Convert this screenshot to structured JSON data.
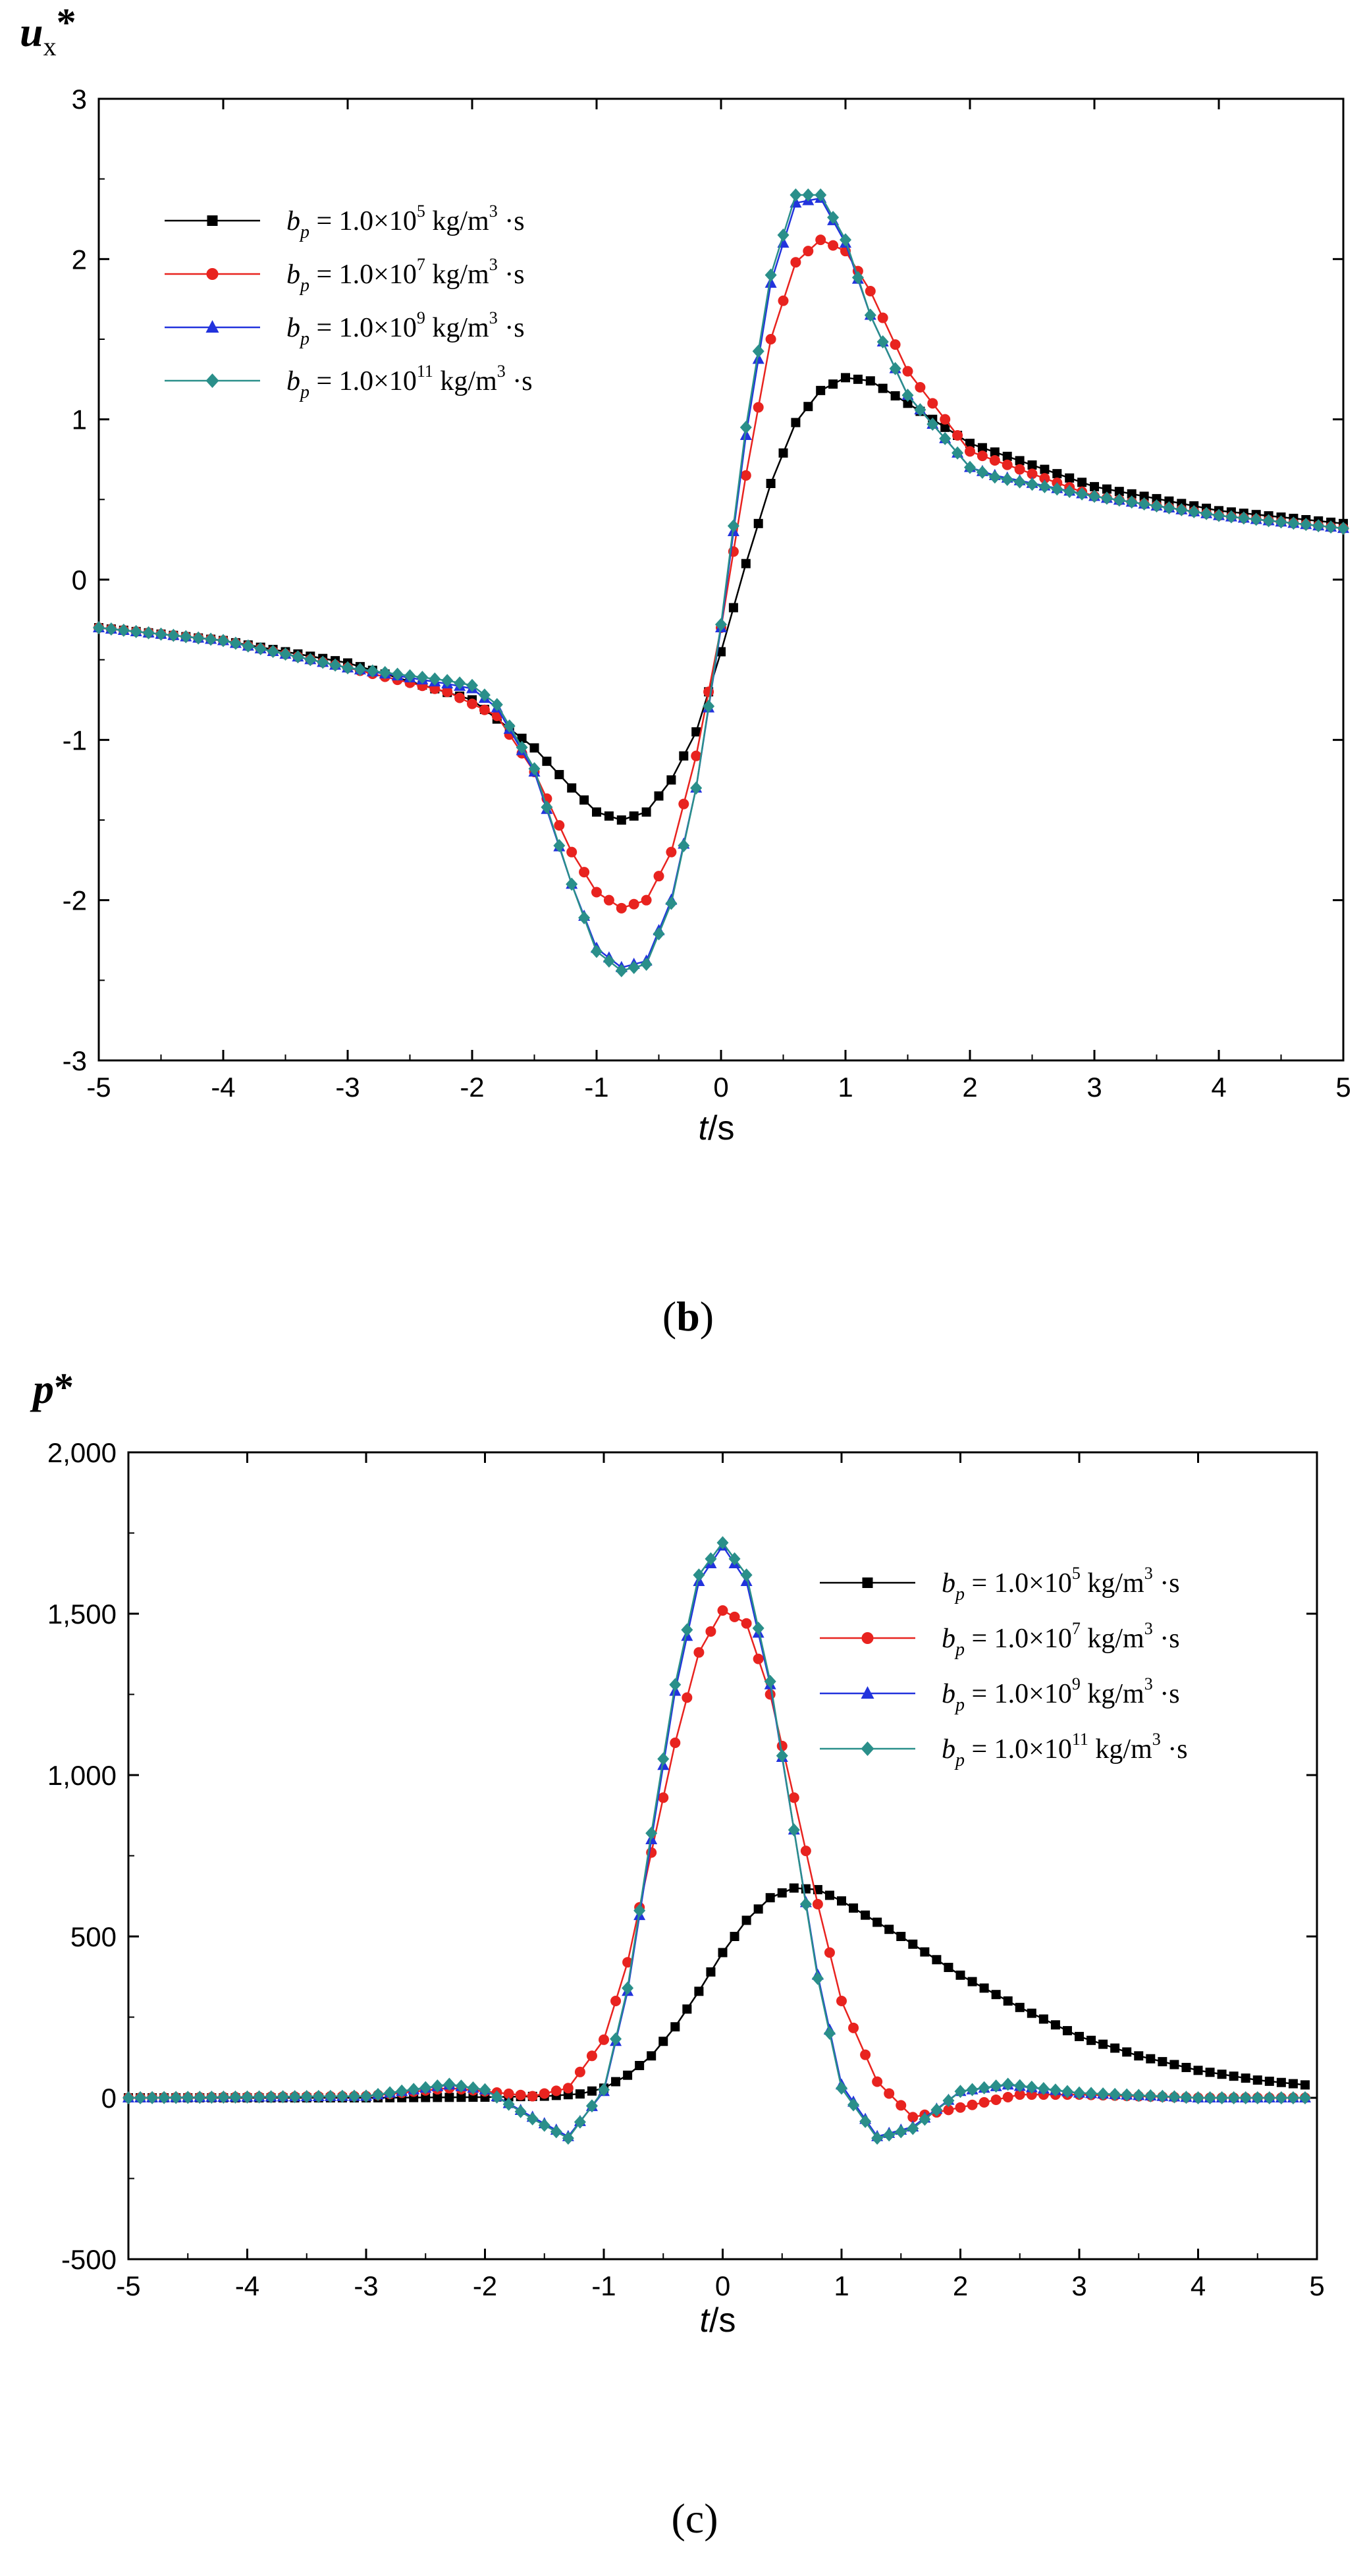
{
  "chart_data": [
    {
      "type": "line",
      "panel_label": "(b)",
      "ylabel_main": "u",
      "ylabel_sub": "x",
      "ylabel_star": "*",
      "xlabel": "t/s",
      "xlim": [
        -5,
        5
      ],
      "ylim": [
        -3,
        3
      ],
      "x_ticks": [
        -5,
        -4,
        -3,
        -2,
        -1,
        0,
        1,
        2,
        3,
        4,
        5
      ],
      "x_tick_labels": [
        "-5",
        "-4",
        "-3",
        "-2",
        "-1",
        "0",
        "1",
        "2",
        "3",
        "4",
        "5"
      ],
      "y_ticks": [
        -3,
        -2,
        -1,
        0,
        1,
        2,
        3
      ],
      "y_tick_labels": [
        "-3",
        "-2",
        "-1",
        "0",
        "1",
        "2",
        "3"
      ],
      "legend_position": "top-left",
      "series": [
        {
          "name": "b_p = 1.0×10^5 kg/m^3·s",
          "exp": "5",
          "color": "#000000",
          "marker": "square",
          "x": [
            -5,
            -4,
            -3,
            -2,
            -1.5,
            -1.2,
            -1.0,
            -0.8,
            -0.6,
            -0.4,
            -0.2,
            0,
            0.2,
            0.4,
            0.6,
            0.8,
            1.0,
            1.2,
            1.5,
            2,
            3,
            4,
            5
          ],
          "y": [
            -0.3,
            -0.38,
            -0.52,
            -0.75,
            -1.05,
            -1.3,
            -1.45,
            -1.5,
            -1.45,
            -1.25,
            -0.95,
            -0.45,
            0.1,
            0.6,
            0.98,
            1.18,
            1.26,
            1.24,
            1.1,
            0.85,
            0.58,
            0.43,
            0.35
          ]
        },
        {
          "name": "b_p = 1.0×10^7 kg/m^3·s",
          "exp": "7",
          "color": "#e8231f",
          "marker": "circle",
          "x": [
            -5,
            -4,
            -3,
            -2.2,
            -1.8,
            -1.5,
            -1.2,
            -1.0,
            -0.8,
            -0.6,
            -0.4,
            -0.2,
            0,
            0.2,
            0.4,
            0.6,
            0.8,
            1.0,
            1.2,
            1.5,
            2,
            3,
            4,
            5
          ],
          "y": [
            -0.3,
            -0.38,
            -0.55,
            -0.7,
            -0.85,
            -1.2,
            -1.7,
            -1.95,
            -2.05,
            -2.0,
            -1.7,
            -1.1,
            -0.3,
            0.65,
            1.5,
            1.98,
            2.12,
            2.05,
            1.8,
            1.3,
            0.8,
            0.52,
            0.4,
            0.32
          ]
        },
        {
          "name": "b_p = 1.0×10^9 kg/m^3·s",
          "exp": "9",
          "color": "#2233dd",
          "marker": "triangle",
          "x": [
            -5,
            -4,
            -3,
            -2.2,
            -2.0,
            -1.8,
            -1.5,
            -1.2,
            -1.0,
            -0.8,
            -0.6,
            -0.4,
            -0.2,
            0,
            0.2,
            0.4,
            0.6,
            0.8,
            1.0,
            1.2,
            1.5,
            2,
            2.2,
            3,
            4,
            5
          ],
          "y": [
            -0.3,
            -0.38,
            -0.55,
            -0.65,
            -0.68,
            -0.8,
            -1.2,
            -1.9,
            -2.3,
            -2.42,
            -2.38,
            -2.0,
            -1.3,
            -0.3,
            0.9,
            1.85,
            2.35,
            2.38,
            2.1,
            1.65,
            1.15,
            0.7,
            0.65,
            0.52,
            0.4,
            0.32
          ]
        },
        {
          "name": "b_p = 1.0×10^11 kg/m^3·s",
          "exp": "11",
          "color": "#2a8f8a",
          "marker": "diamond",
          "x": [
            -5,
            -4,
            -3,
            -2.2,
            -2.0,
            -1.8,
            -1.5,
            -1.2,
            -1.0,
            -0.8,
            -0.6,
            -0.4,
            -0.2,
            0,
            0.2,
            0.4,
            0.6,
            0.8,
            1.0,
            1.2,
            1.5,
            2,
            2.2,
            3,
            4,
            5
          ],
          "y": [
            -0.3,
            -0.38,
            -0.55,
            -0.63,
            -0.66,
            -0.78,
            -1.18,
            -1.9,
            -2.32,
            -2.44,
            -2.4,
            -2.02,
            -1.3,
            -0.28,
            0.95,
            1.9,
            2.4,
            2.4,
            2.12,
            1.65,
            1.15,
            0.7,
            0.64,
            0.52,
            0.4,
            0.32
          ]
        }
      ]
    },
    {
      "type": "line",
      "panel_label": "(c)",
      "ylabel_main": "p",
      "ylabel_sub": "",
      "ylabel_star": "*",
      "xlabel": "t/s",
      "xlim": [
        -5,
        5
      ],
      "ylim": [
        -500,
        2000
      ],
      "x_ticks": [
        -5,
        -4,
        -3,
        -2,
        -1,
        0,
        1,
        2,
        3,
        4,
        5
      ],
      "x_tick_labels": [
        "-5",
        "-4",
        "-3",
        "-2",
        "-1",
        "0",
        "1",
        "2",
        "3",
        "4",
        "5"
      ],
      "y_ticks": [
        -500,
        0,
        500,
        1000,
        1500,
        2000
      ],
      "y_tick_labels": [
        "-500",
        "0",
        "500",
        "1,000",
        "1,500",
        "2,000"
      ],
      "legend_position": "top-right",
      "series": [
        {
          "name": "b_p = 1.0×10^5 kg/m^3·s",
          "exp": "5",
          "color": "#000000",
          "marker": "square",
          "x": [
            -5,
            -3,
            -2,
            -1.5,
            -1.2,
            -1.0,
            -0.8,
            -0.6,
            -0.4,
            -0.2,
            0,
            0.2,
            0.4,
            0.6,
            0.8,
            1.0,
            1.5,
            2,
            2.5,
            3,
            3.5,
            4,
            4.5,
            4.9
          ],
          "y": [
            0,
            0,
            2,
            5,
            12,
            30,
            70,
            130,
            220,
            330,
            450,
            550,
            620,
            650,
            645,
            610,
            500,
            380,
            280,
            190,
            130,
            85,
            55,
            40
          ]
        },
        {
          "name": "b_p = 1.0×10^7 kg/m^3·s",
          "exp": "7",
          "color": "#e8231f",
          "marker": "circle",
          "x": [
            -5,
            -3,
            -2.3,
            -2.0,
            -1.6,
            -1.3,
            -1.0,
            -0.8,
            -0.6,
            -0.4,
            -0.2,
            0,
            0.2,
            0.4,
            0.6,
            0.8,
            1.0,
            1.3,
            1.6,
            2.0,
            2.5,
            3,
            4,
            4.9
          ],
          "y": [
            0,
            5,
            30,
            20,
            5,
            30,
            180,
            420,
            760,
            1100,
            1380,
            1510,
            1470,
            1250,
            930,
            600,
            300,
            50,
            -60,
            -30,
            10,
            10,
            0,
            0
          ]
        },
        {
          "name": "b_p = 1.0×10^9 kg/m^3·s",
          "exp": "9",
          "color": "#2233dd",
          "marker": "triangle",
          "x": [
            -5,
            -3,
            -2.3,
            -2.0,
            -1.6,
            -1.3,
            -1.0,
            -0.8,
            -0.6,
            -0.4,
            -0.2,
            0,
            0.2,
            0.4,
            0.6,
            0.8,
            1.0,
            1.3,
            1.6,
            2.0,
            2.4,
            3,
            4,
            4.9
          ],
          "y": [
            0,
            5,
            40,
            25,
            -60,
            -120,
            20,
            330,
            800,
            1260,
            1600,
            1710,
            1600,
            1280,
            830,
            380,
            40,
            -120,
            -90,
            20,
            40,
            15,
            0,
            0
          ]
        },
        {
          "name": "b_p = 1.0×10^11 kg/m^3·s",
          "exp": "11",
          "color": "#2a8f8a",
          "marker": "diamond",
          "x": [
            -5,
            -3,
            -2.3,
            -2.0,
            -1.6,
            -1.3,
            -1.0,
            -0.8,
            -0.6,
            -0.4,
            -0.2,
            0,
            0.2,
            0.4,
            0.6,
            0.8,
            1.0,
            1.3,
            1.6,
            2.0,
            2.4,
            3,
            4,
            4.9
          ],
          "y": [
            0,
            5,
            42,
            25,
            -65,
            -125,
            25,
            340,
            820,
            1280,
            1620,
            1720,
            1620,
            1290,
            830,
            370,
            30,
            -125,
            -95,
            20,
            42,
            15,
            0,
            0
          ]
        }
      ]
    }
  ],
  "legend_label": {
    "b": "b",
    "p": "p",
    "equals": "=",
    "base": "1.0×10",
    "units": "kg/m",
    "cube": "3",
    "tail": "·s"
  }
}
